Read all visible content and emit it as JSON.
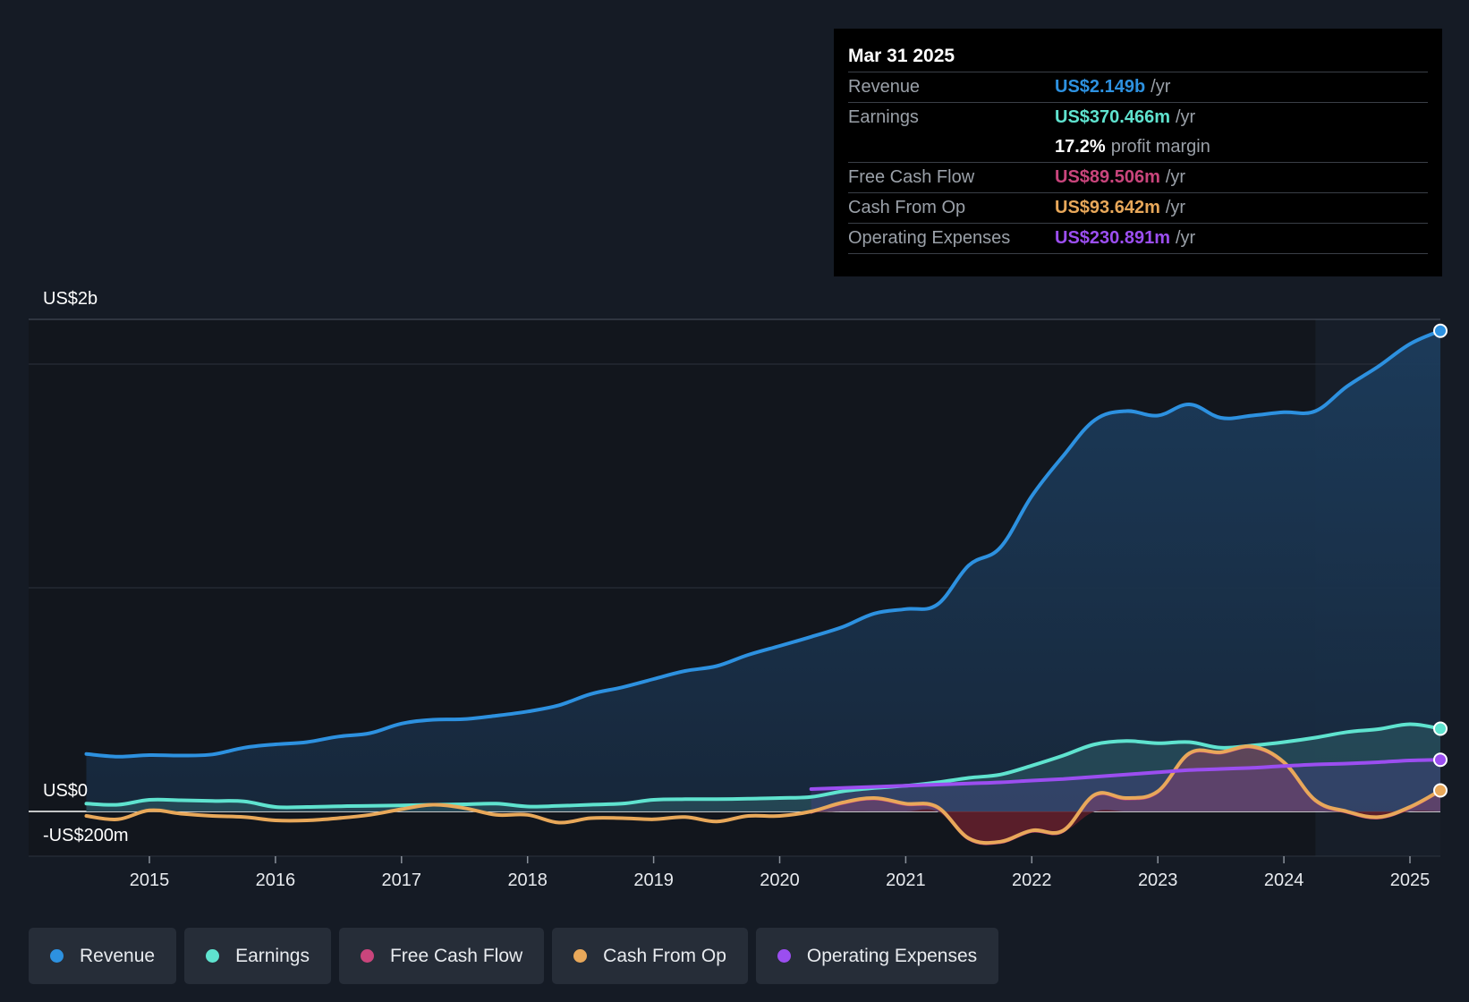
{
  "colors": {
    "revenue": "#2d91e0",
    "earnings": "#5fe3cf",
    "free_cash_flow": "#c9457c",
    "cash_from_op": "#e8a85a",
    "operating_expenses": "#9b4ef0"
  },
  "tooltip": {
    "date": "Mar 31 2025",
    "rows": [
      {
        "label": "Revenue",
        "value": "US$2.149b",
        "unit": "/yr"
      },
      {
        "label": "Earnings",
        "value": "US$370.466m",
        "unit": "/yr"
      },
      {
        "label": "",
        "value": "17.2%",
        "unit": "profit margin"
      },
      {
        "label": "Free Cash Flow",
        "value": "US$89.506m",
        "unit": "/yr"
      },
      {
        "label": "Cash From Op",
        "value": "US$93.642m",
        "unit": "/yr"
      },
      {
        "label": "Operating Expenses",
        "value": "US$230.891m",
        "unit": "/yr"
      }
    ]
  },
  "legend": [
    {
      "label": "Revenue",
      "icon": "revenue-dot-icon"
    },
    {
      "label": "Earnings",
      "icon": "earnings-dot-icon"
    },
    {
      "label": "Free Cash Flow",
      "icon": "free-cash-flow-dot-icon"
    },
    {
      "label": "Cash From Op",
      "icon": "cash-from-op-dot-icon"
    },
    {
      "label": "Operating Expenses",
      "icon": "operating-expenses-dot-icon"
    }
  ],
  "chart_data": {
    "type": "area",
    "title": "",
    "y_labels": {
      "top": "US$2b",
      "zero": "US$0",
      "bottom": "-US$200m"
    },
    "ylim": [
      -200,
      2200
    ],
    "xlim": [
      2014.55,
      2025.25
    ],
    "x_ticks": [
      "2015",
      "2016",
      "2017",
      "2018",
      "2019",
      "2020",
      "2021",
      "2022",
      "2023",
      "2024",
      "2025"
    ],
    "forecast_start": 2024.25,
    "series": [
      {
        "name": "Revenue",
        "key": "revenue",
        "x": [
          2014.5,
          2014.75,
          2015.0,
          2015.25,
          2015.5,
          2015.75,
          2016.0,
          2016.25,
          2016.5,
          2016.75,
          2017.0,
          2017.25,
          2017.5,
          2017.75,
          2018.0,
          2018.25,
          2018.5,
          2018.75,
          2019.0,
          2019.25,
          2019.5,
          2019.75,
          2020.0,
          2020.25,
          2020.5,
          2020.75,
          2021.0,
          2021.25,
          2021.5,
          2021.75,
          2022.0,
          2022.25,
          2022.5,
          2022.75,
          2023.0,
          2023.25,
          2023.5,
          2023.75,
          2024.0,
          2024.25,
          2024.5,
          2024.75,
          2025.0,
          2025.25
        ],
        "values": [
          257,
          245,
          252,
          250,
          255,
          285,
          300,
          310,
          335,
          350,
          393,
          410,
          413,
          428,
          447,
          475,
          525,
          555,
          592,
          628,
          650,
          700,
          740,
          781,
          825,
          885,
          905,
          925,
          1100,
          1180,
          1410,
          1590,
          1750,
          1790,
          1770,
          1820,
          1760,
          1770,
          1785,
          1790,
          1900,
          1990,
          2090,
          2149
        ]
      },
      {
        "name": "Earnings",
        "key": "earnings",
        "x": [
          2014.5,
          2014.75,
          2015.0,
          2015.25,
          2015.5,
          2015.75,
          2016.0,
          2016.25,
          2016.5,
          2016.75,
          2017.0,
          2017.25,
          2017.5,
          2017.75,
          2018.0,
          2018.25,
          2018.5,
          2018.75,
          2019.0,
          2019.25,
          2019.5,
          2019.75,
          2020.0,
          2020.25,
          2020.5,
          2020.75,
          2021.0,
          2021.25,
          2021.5,
          2021.75,
          2022.0,
          2022.25,
          2022.5,
          2022.75,
          2023.0,
          2023.25,
          2023.5,
          2023.75,
          2024.0,
          2024.25,
          2024.5,
          2024.75,
          2025.0,
          2025.25
        ],
        "values": [
          35,
          30,
          52,
          50,
          47,
          45,
          20,
          20,
          23,
          25,
          27,
          30,
          32,
          35,
          22,
          25,
          30,
          35,
          52,
          55,
          55,
          57,
          60,
          65,
          90,
          105,
          115,
          130,
          150,
          165,
          205,
          250,
          300,
          315,
          305,
          310,
          285,
          295,
          310,
          330,
          355,
          368,
          390,
          370
        ]
      },
      {
        "name": "Cash From Op",
        "key": "cash_from_op",
        "x": [
          2014.5,
          2014.75,
          2015.0,
          2015.25,
          2015.5,
          2015.75,
          2016.0,
          2016.25,
          2016.5,
          2016.75,
          2017.0,
          2017.25,
          2017.5,
          2017.75,
          2018.0,
          2018.25,
          2018.5,
          2018.75,
          2019.0,
          2019.25,
          2019.5,
          2019.75,
          2020.0,
          2020.25,
          2020.5,
          2020.75,
          2021.0,
          2021.25,
          2021.5,
          2021.75,
          2022.0,
          2022.25,
          2022.5,
          2022.75,
          2023.0,
          2023.25,
          2023.5,
          2023.75,
          2024.0,
          2024.25,
          2024.5,
          2024.75,
          2025.0,
          2025.25
        ],
        "values": [
          -20,
          -35,
          5,
          -10,
          -20,
          -25,
          -40,
          -40,
          -30,
          -15,
          10,
          30,
          15,
          -15,
          -15,
          -50,
          -30,
          -30,
          -35,
          -25,
          -45,
          -20,
          -20,
          0,
          40,
          60,
          35,
          20,
          -120,
          -135,
          -85,
          -85,
          75,
          60,
          90,
          260,
          265,
          290,
          220,
          50,
          0,
          -25,
          20,
          94
        ]
      },
      {
        "name": "Free Cash Flow",
        "key": "free_cash_flow",
        "x": [
          2020.25,
          2020.5,
          2020.75,
          2021.0,
          2021.25,
          2021.5,
          2021.75,
          2022.0,
          2022.25,
          2022.5,
          2022.75,
          2023.0,
          2023.25,
          2023.5,
          2023.75,
          2024.0,
          2024.25,
          2024.5,
          2024.75,
          2025.0,
          2025.25
        ],
        "values": [
          -5,
          35,
          55,
          30,
          15,
          -125,
          -140,
          -90,
          -90,
          70,
          55,
          85,
          255,
          260,
          285,
          215,
          45,
          -5,
          -30,
          15,
          90
        ]
      },
      {
        "name": "Operating Expenses",
        "key": "operating_expenses",
        "x": [
          2020.25,
          2020.5,
          2020.75,
          2021.0,
          2021.25,
          2021.5,
          2021.75,
          2022.0,
          2022.25,
          2022.5,
          2022.75,
          2023.0,
          2023.25,
          2023.5,
          2023.75,
          2024.0,
          2024.25,
          2024.5,
          2024.75,
          2025.0,
          2025.25
        ],
        "values": [
          100,
          105,
          110,
          115,
          120,
          125,
          130,
          138,
          145,
          155,
          165,
          175,
          185,
          190,
          195,
          203,
          210,
          214,
          220,
          228,
          231
        ]
      }
    ]
  }
}
